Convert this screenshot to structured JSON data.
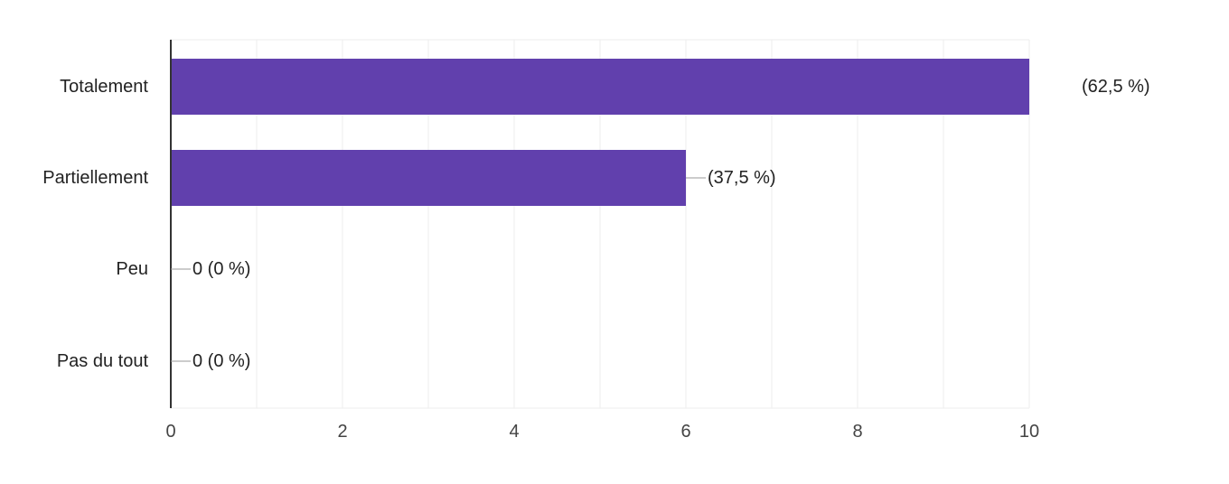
{
  "chart_data": {
    "type": "bar",
    "orientation": "horizontal",
    "categories": [
      "Totalement",
      "Partiellement",
      "Peu",
      "Pas du tout"
    ],
    "values": [
      10,
      6,
      0,
      0
    ],
    "data_labels": [
      "(62,5 %)",
      "(37,5 %)",
      "0 (0 %)",
      "0 (0 %)"
    ],
    "xlim": [
      0,
      10
    ],
    "x_ticks": [
      "0",
      "2",
      "4",
      "6",
      "8",
      "10"
    ],
    "grid": true,
    "title": "",
    "xlabel": "",
    "ylabel": "",
    "colors": {
      "bar": "#6140ad",
      "grid": "#eeeeee",
      "axis": "#333333",
      "leader": "#999999"
    }
  }
}
